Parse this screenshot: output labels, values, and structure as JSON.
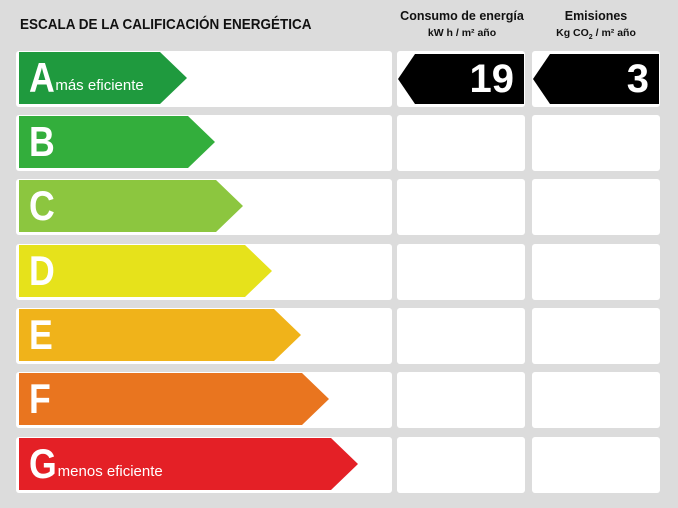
{
  "title": "ESCALA DE LA CALIFICACIÓN ENERGÉTICA",
  "consumption_header": {
    "line1": "Consumo de energía",
    "line2_pre": "kW h / m² año"
  },
  "emissions_header": {
    "line1": "Emisiones",
    "line2_pre": "Kg CO",
    "line2_sub": "2",
    "line2_post": " / m² año"
  },
  "ratings": [
    {
      "letter": "A",
      "sublabel": "más eficiente",
      "color": "#1f9a3e"
    },
    {
      "letter": "B",
      "sublabel": "",
      "color": "#33ae3c"
    },
    {
      "letter": "C",
      "sublabel": "",
      "color": "#8cc63f"
    },
    {
      "letter": "D",
      "sublabel": "",
      "color": "#e6e21b"
    },
    {
      "letter": "E",
      "sublabel": "",
      "color": "#f0b31a"
    },
    {
      "letter": "F",
      "sublabel": "",
      "color": "#e9751f"
    },
    {
      "letter": "G",
      "sublabel": "menos eficiente",
      "color": "#e42026"
    }
  ],
  "consumption": {
    "rating": "A",
    "value": "19"
  },
  "emissions": {
    "rating": "A",
    "value": "3"
  }
}
